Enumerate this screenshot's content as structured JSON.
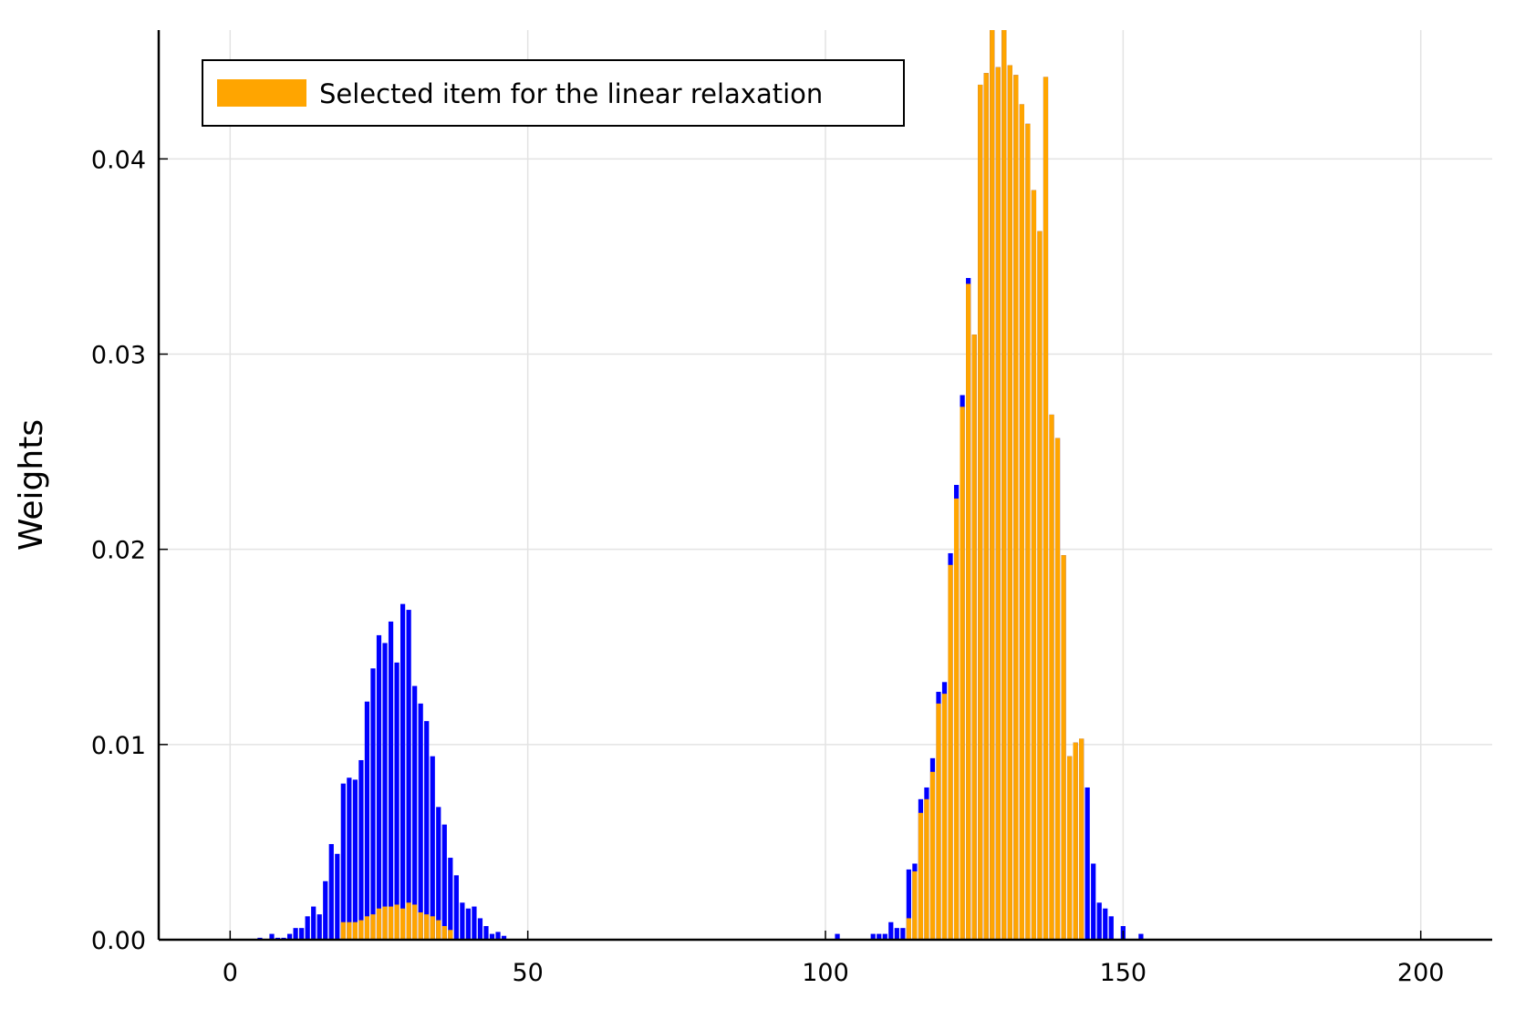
{
  "chart_data": {
    "type": "bar",
    "title": "",
    "xlabel": "",
    "ylabel": "Weights",
    "xlim": [
      -12,
      212
    ],
    "ylim": [
      0,
      0.0466
    ],
    "xticks": [
      {
        "value": 0,
        "label": "0"
      },
      {
        "value": 50,
        "label": "50"
      },
      {
        "value": 100,
        "label": "100"
      },
      {
        "value": 150,
        "label": "150"
      },
      {
        "value": 200,
        "label": "200"
      }
    ],
    "yticks": [
      {
        "value": 0,
        "label": "0.00"
      },
      {
        "value": 0.01,
        "label": "0.01"
      },
      {
        "value": 0.02,
        "label": "0.02"
      },
      {
        "value": 0.03,
        "label": "0.03"
      },
      {
        "value": 0.04,
        "label": "0.04"
      }
    ],
    "grid": true,
    "legend": {
      "position": "top-left",
      "entries": [
        {
          "label": "Selected item for the linear relaxation",
          "color": "#FFA500"
        }
      ]
    },
    "colors": {
      "total": "#0000FF",
      "selected": "#FFA500"
    },
    "series": [
      {
        "color": "#0000FF",
        "x": [
          5,
          7,
          8,
          9,
          10,
          11,
          12,
          13,
          14,
          15,
          16,
          17,
          18,
          19,
          20,
          21,
          22,
          23,
          24,
          25,
          26,
          27,
          28,
          29,
          30,
          31,
          32,
          33,
          34,
          35,
          36,
          37,
          38,
          39,
          40,
          41,
          42,
          43,
          44,
          45,
          46,
          102,
          108,
          109,
          110,
          111,
          112,
          113,
          114,
          115,
          116,
          117,
          118,
          119,
          120,
          121,
          122,
          123,
          124,
          125,
          126,
          127,
          128,
          129,
          130,
          131,
          132,
          133,
          134,
          135,
          136,
          137,
          138,
          139,
          140,
          141,
          142,
          143,
          144,
          145,
          146,
          147,
          148,
          150,
          153
        ],
        "values": [
          0.0001,
          0.0003,
          0.0001,
          0.0001,
          0.0003,
          0.0006,
          0.0006,
          0.0012,
          0.0017,
          0.0013,
          0.003,
          0.0049,
          0.0044,
          0.008,
          0.0083,
          0.0082,
          0.0092,
          0.0122,
          0.0139,
          0.0156,
          0.0152,
          0.0163,
          0.0142,
          0.0172,
          0.0169,
          0.013,
          0.0121,
          0.0112,
          0.0094,
          0.0068,
          0.0059,
          0.0042,
          0.0033,
          0.0019,
          0.0016,
          0.0017,
          0.0011,
          0.0007,
          0.0003,
          0.0004,
          0.0002,
          0.0003,
          0.0003,
          0.0003,
          0.0003,
          0.0009,
          0.0006,
          0.0006,
          0.0036,
          0.0039,
          0.0072,
          0.0078,
          0.0093,
          0.0127,
          0.0132,
          0.0198,
          0.0233,
          0.0279,
          0.0339,
          0.031,
          0.0438,
          0.0444,
          0.0466,
          0.0447,
          0.0466,
          0.0448,
          0.0443,
          0.0428,
          0.0418,
          0.0384,
          0.0363,
          0.0442,
          0.0269,
          0.0257,
          0.0197,
          0.0094,
          0.0101,
          0.0103,
          0.0078,
          0.0039,
          0.0019,
          0.0016,
          0.0012,
          0.0007,
          0.0003
        ]
      },
      {
        "name": "Selected item for the linear relaxation",
        "color": "#FFA500",
        "x": [
          19,
          20,
          21,
          22,
          23,
          24,
          25,
          26,
          27,
          28,
          29,
          30,
          31,
          32,
          33,
          34,
          35,
          36,
          37,
          114,
          115,
          116,
          117,
          118,
          119,
          120,
          121,
          122,
          123,
          124,
          125,
          126,
          127,
          128,
          129,
          130,
          131,
          132,
          133,
          134,
          135,
          136,
          137,
          138,
          139,
          140,
          141,
          142,
          143
        ],
        "values": [
          0.0009,
          0.0009,
          0.0009,
          0.001,
          0.0012,
          0.0013,
          0.0016,
          0.0017,
          0.0017,
          0.0018,
          0.0016,
          0.0019,
          0.0018,
          0.0014,
          0.0013,
          0.0012,
          0.001,
          0.0007,
          0.0005,
          0.0011,
          0.0035,
          0.0065,
          0.0072,
          0.0086,
          0.0121,
          0.0126,
          0.0192,
          0.0226,
          0.0273,
          0.0336,
          0.031,
          0.0438,
          0.0444,
          0.0466,
          0.0447,
          0.0466,
          0.0448,
          0.0443,
          0.0428,
          0.0418,
          0.0384,
          0.0363,
          0.0442,
          0.0269,
          0.0257,
          0.0197,
          0.0094,
          0.0101,
          0.0103
        ]
      }
    ]
  }
}
